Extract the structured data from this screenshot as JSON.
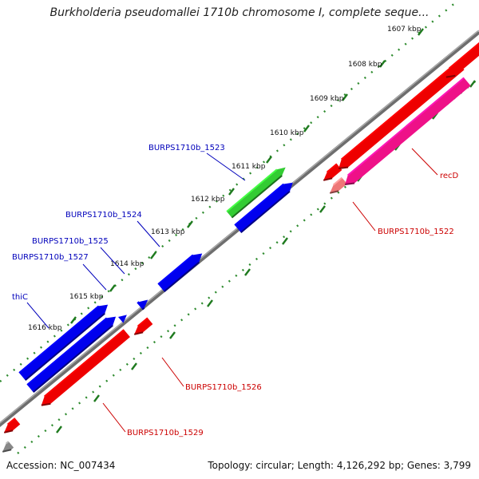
{
  "title": "Burkholderia pseudomallei 1710b chromosome I, complete seque...",
  "footer": {
    "accession": "Accession: NC_007434",
    "topology": "Topology: circular; Length: 4,126,292 bp; Genes: 3,799"
  },
  "colors": {
    "backbone": "#808080",
    "tick_dots": "#2e8b2e",
    "forward_gene": "#0000ee",
    "reverse_gene": "#ee0000",
    "highlight_green": "#33cc33",
    "highlight_pink": "#ee1188",
    "label_forward": "#0000bb",
    "label_reverse": "#cc0000"
  },
  "ticks": [
    {
      "label": "1607 kbp"
    },
    {
      "label": "1608 kbp"
    },
    {
      "label": "1609 kbp"
    },
    {
      "label": "1610 kbp"
    },
    {
      "label": "1611 kbp"
    },
    {
      "label": "1612 kbp"
    },
    {
      "label": "1613 kbp"
    },
    {
      "label": "1614 kbp"
    },
    {
      "label": "1615 kbp"
    },
    {
      "label": "1616 kbp"
    }
  ],
  "gene_labels": [
    {
      "name": "BURPS1710b_1523",
      "strand": "forward"
    },
    {
      "name": "BURPS1710b_1524",
      "strand": "forward"
    },
    {
      "name": "BURPS1710b_1525",
      "strand": "forward"
    },
    {
      "name": "BURPS1710b_1527",
      "strand": "forward"
    },
    {
      "name": "thiC",
      "strand": "forward"
    },
    {
      "name": "recD",
      "strand": "reverse"
    },
    {
      "name": "BURPS1710b_1522",
      "strand": "reverse"
    },
    {
      "name": "BURPS1710b_1526",
      "strand": "reverse"
    },
    {
      "name": "BURPS1710b_1529",
      "strand": "reverse"
    }
  ]
}
